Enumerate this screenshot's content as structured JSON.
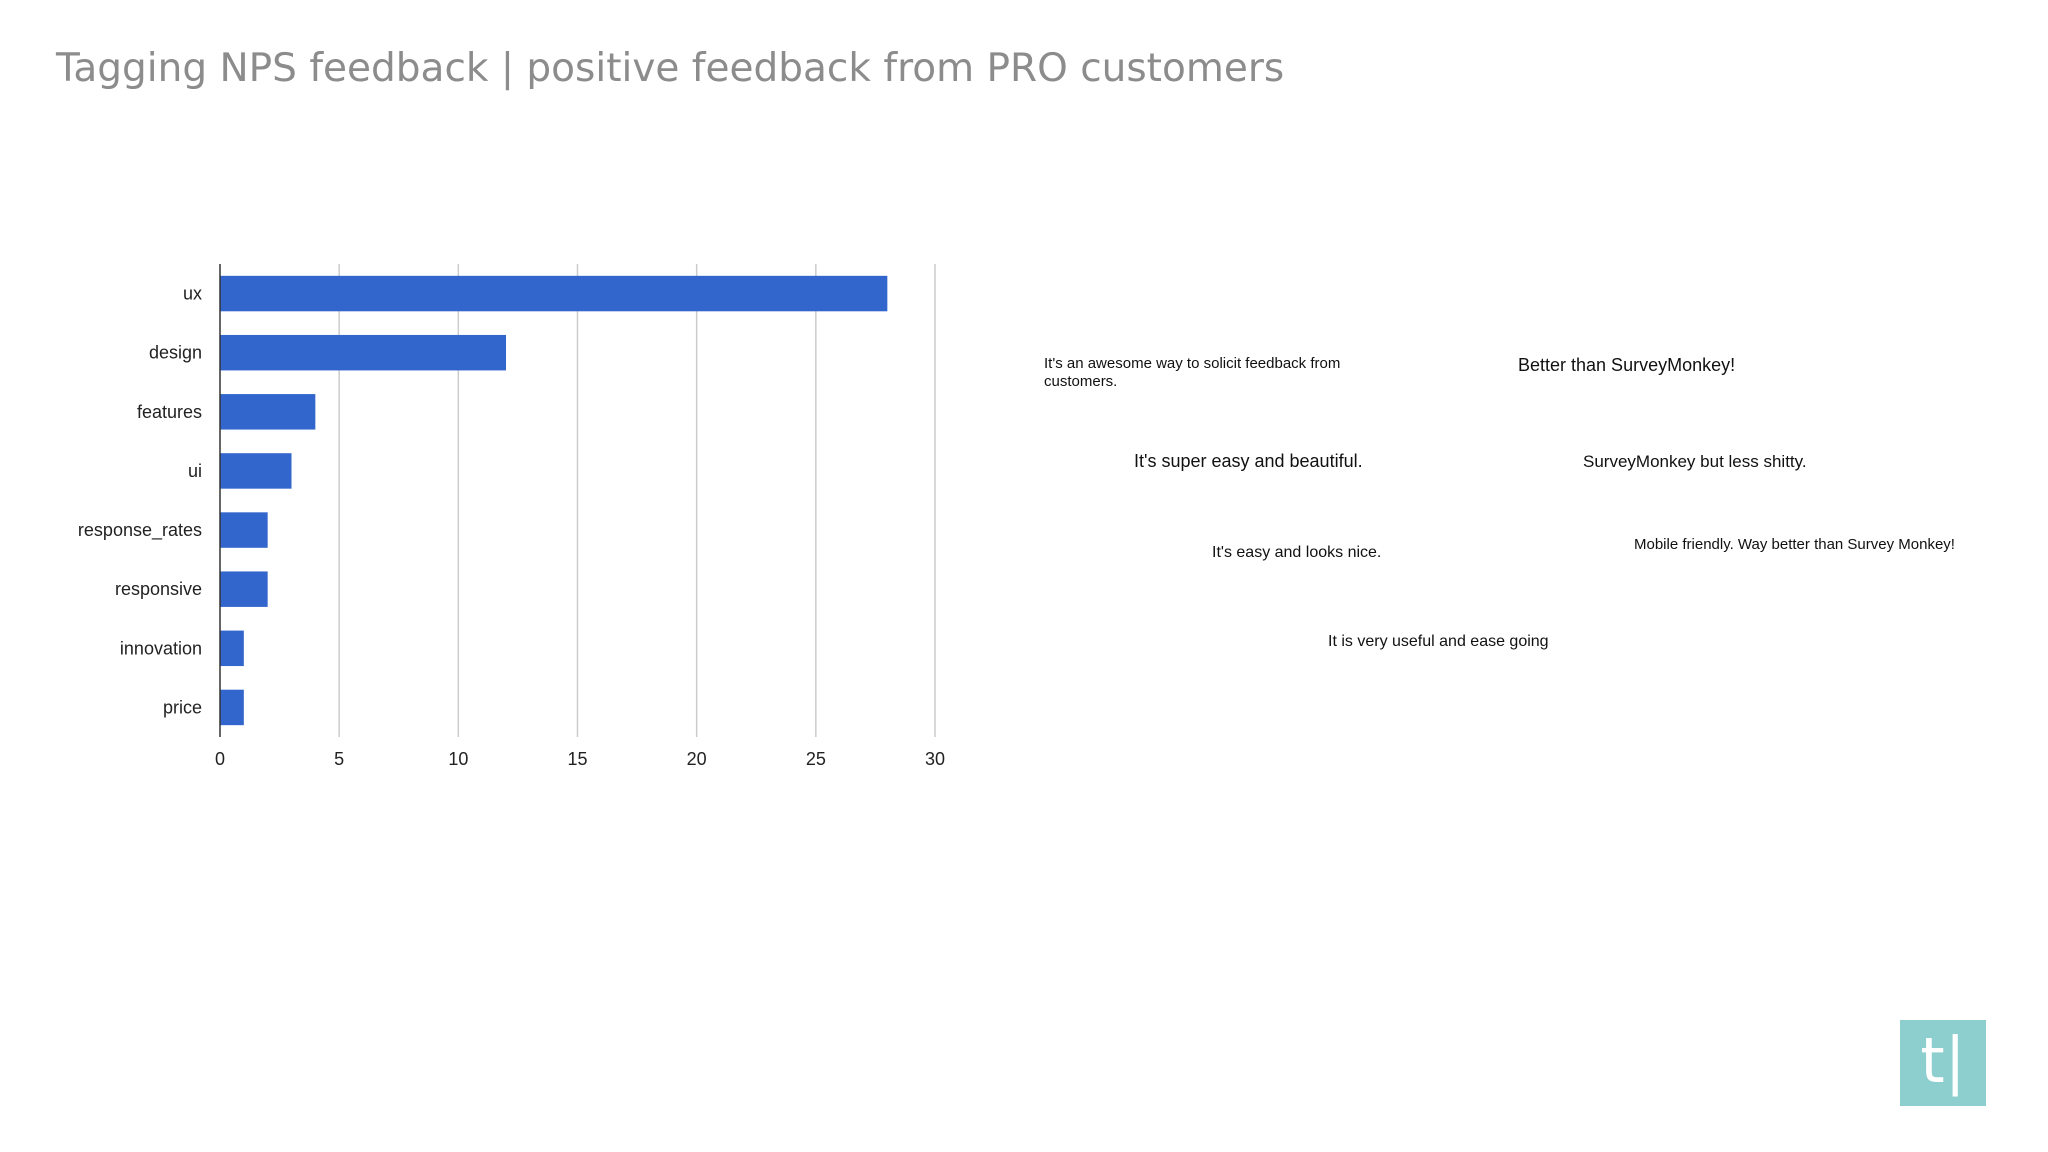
{
  "title": "Tagging NPS feedback | positive feedback from PRO customers",
  "chart_data": {
    "type": "bar",
    "orientation": "horizontal",
    "categories": [
      "ux",
      "design",
      "features",
      "ui",
      "response_rates",
      "responsive",
      "innovation",
      "price"
    ],
    "values": [
      28,
      12,
      4,
      3,
      2,
      2,
      1,
      1
    ],
    "xlim": [
      0,
      30
    ],
    "xticks": [
      0,
      5,
      10,
      15,
      20,
      25,
      30
    ],
    "grid": true,
    "legend": "none",
    "bar_color": "#3366cc",
    "grid_color": "#cccccc"
  },
  "quotes": [
    "It's an awesome way to solicit feedback from customers.",
    "Better than SurveyMonkey!",
    "It's super easy and beautiful.",
    "SurveyMonkey but less shitty.",
    "It's easy and looks nice.",
    "Mobile friendly. Way better than Survey Monkey!",
    "It is very useful and ease going"
  ],
  "logo": {
    "text": "t|",
    "color": "#8dcfcf"
  }
}
